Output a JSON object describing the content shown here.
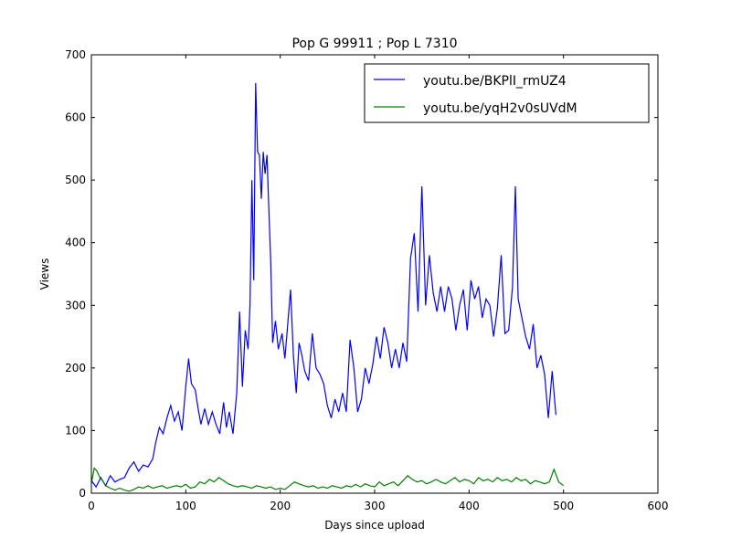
{
  "chart_data": {
    "type": "line",
    "title": "Pop G 99911 ; Pop L 7310",
    "xlabel": "Days since upload",
    "ylabel": "Views",
    "xlim": [
      0,
      600
    ],
    "ylim": [
      0,
      700
    ],
    "xticks": [
      0,
      100,
      200,
      300,
      400,
      500,
      600
    ],
    "yticks": [
      0,
      100,
      200,
      300,
      400,
      500,
      600,
      700
    ],
    "grid": false,
    "legend_position": "top-right",
    "series": [
      {
        "name": "youtu.be/BKPlI_rmUZ4",
        "color": "#0000ff",
        "points": [
          [
            0,
            20
          ],
          [
            5,
            10
          ],
          [
            10,
            25
          ],
          [
            15,
            12
          ],
          [
            20,
            28
          ],
          [
            25,
            18
          ],
          [
            30,
            22
          ],
          [
            35,
            25
          ],
          [
            40,
            40
          ],
          [
            45,
            50
          ],
          [
            50,
            35
          ],
          [
            55,
            45
          ],
          [
            60,
            42
          ],
          [
            65,
            55
          ],
          [
            68,
            80
          ],
          [
            72,
            105
          ],
          [
            76,
            95
          ],
          [
            80,
            120
          ],
          [
            84,
            140
          ],
          [
            88,
            115
          ],
          [
            92,
            130
          ],
          [
            96,
            100
          ],
          [
            100,
            170
          ],
          [
            103,
            215
          ],
          [
            106,
            175
          ],
          [
            110,
            165
          ],
          [
            113,
            135
          ],
          [
            116,
            110
          ],
          [
            120,
            135
          ],
          [
            124,
            110
          ],
          [
            128,
            130
          ],
          [
            132,
            110
          ],
          [
            136,
            95
          ],
          [
            140,
            145
          ],
          [
            143,
            105
          ],
          [
            146,
            130
          ],
          [
            150,
            95
          ],
          [
            154,
            160
          ],
          [
            157,
            290
          ],
          [
            160,
            170
          ],
          [
            163,
            260
          ],
          [
            166,
            230
          ],
          [
            168,
            300
          ],
          [
            170,
            500
          ],
          [
            172,
            340
          ],
          [
            174,
            655
          ],
          [
            176,
            545
          ],
          [
            178,
            540
          ],
          [
            180,
            470
          ],
          [
            182,
            545
          ],
          [
            184,
            510
          ],
          [
            186,
            540
          ],
          [
            188,
            450
          ],
          [
            190,
            370
          ],
          [
            192,
            240
          ],
          [
            195,
            275
          ],
          [
            198,
            230
          ],
          [
            202,
            255
          ],
          [
            205,
            215
          ],
          [
            208,
            270
          ],
          [
            211,
            325
          ],
          [
            214,
            220
          ],
          [
            217,
            160
          ],
          [
            220,
            240
          ],
          [
            223,
            220
          ],
          [
            226,
            195
          ],
          [
            230,
            180
          ],
          [
            234,
            255
          ],
          [
            238,
            200
          ],
          [
            242,
            190
          ],
          [
            246,
            175
          ],
          [
            250,
            140
          ],
          [
            254,
            120
          ],
          [
            258,
            150
          ],
          [
            262,
            130
          ],
          [
            266,
            160
          ],
          [
            270,
            130
          ],
          [
            274,
            245
          ],
          [
            278,
            200
          ],
          [
            282,
            130
          ],
          [
            286,
            150
          ],
          [
            290,
            200
          ],
          [
            294,
            175
          ],
          [
            298,
            205
          ],
          [
            302,
            250
          ],
          [
            306,
            215
          ],
          [
            310,
            265
          ],
          [
            314,
            240
          ],
          [
            318,
            200
          ],
          [
            322,
            230
          ],
          [
            326,
            200
          ],
          [
            330,
            240
          ],
          [
            334,
            210
          ],
          [
            338,
            375
          ],
          [
            342,
            415
          ],
          [
            346,
            290
          ],
          [
            350,
            490
          ],
          [
            354,
            300
          ],
          [
            358,
            380
          ],
          [
            362,
            320
          ],
          [
            366,
            290
          ],
          [
            370,
            330
          ],
          [
            374,
            290
          ],
          [
            378,
            330
          ],
          [
            382,
            310
          ],
          [
            386,
            260
          ],
          [
            390,
            300
          ],
          [
            394,
            325
          ],
          [
            398,
            260
          ],
          [
            402,
            340
          ],
          [
            406,
            310
          ],
          [
            410,
            330
          ],
          [
            414,
            280
          ],
          [
            418,
            310
          ],
          [
            422,
            300
          ],
          [
            426,
            250
          ],
          [
            430,
            295
          ],
          [
            434,
            380
          ],
          [
            438,
            255
          ],
          [
            442,
            260
          ],
          [
            446,
            330
          ],
          [
            449,
            490
          ],
          [
            452,
            310
          ],
          [
            456,
            280
          ],
          [
            460,
            250
          ],
          [
            464,
            230
          ],
          [
            468,
            270
          ],
          [
            472,
            200
          ],
          [
            476,
            220
          ],
          [
            480,
            190
          ],
          [
            484,
            120
          ],
          [
            488,
            195
          ],
          [
            492,
            125
          ]
        ]
      },
      {
        "name": "youtu.be/yqH2v0sUVdM",
        "color": "#008000",
        "points": [
          [
            0,
            15
          ],
          [
            3,
            40
          ],
          [
            6,
            35
          ],
          [
            9,
            25
          ],
          [
            12,
            20
          ],
          [
            15,
            12
          ],
          [
            20,
            8
          ],
          [
            25,
            5
          ],
          [
            30,
            8
          ],
          [
            35,
            5
          ],
          [
            40,
            3
          ],
          [
            45,
            6
          ],
          [
            50,
            10
          ],
          [
            55,
            8
          ],
          [
            60,
            12
          ],
          [
            65,
            8
          ],
          [
            70,
            10
          ],
          [
            75,
            12
          ],
          [
            80,
            8
          ],
          [
            85,
            10
          ],
          [
            90,
            12
          ],
          [
            95,
            10
          ],
          [
            100,
            14
          ],
          [
            105,
            8
          ],
          [
            110,
            10
          ],
          [
            115,
            18
          ],
          [
            120,
            15
          ],
          [
            125,
            22
          ],
          [
            130,
            18
          ],
          [
            135,
            25
          ],
          [
            140,
            20
          ],
          [
            145,
            15
          ],
          [
            150,
            12
          ],
          [
            155,
            10
          ],
          [
            160,
            12
          ],
          [
            165,
            10
          ],
          [
            170,
            8
          ],
          [
            175,
            12
          ],
          [
            180,
            10
          ],
          [
            185,
            8
          ],
          [
            190,
            10
          ],
          [
            195,
            6
          ],
          [
            200,
            8
          ],
          [
            205,
            6
          ],
          [
            210,
            12
          ],
          [
            215,
            18
          ],
          [
            220,
            15
          ],
          [
            225,
            12
          ],
          [
            230,
            10
          ],
          [
            235,
            12
          ],
          [
            240,
            8
          ],
          [
            245,
            10
          ],
          [
            250,
            8
          ],
          [
            255,
            12
          ],
          [
            260,
            10
          ],
          [
            265,
            8
          ],
          [
            270,
            12
          ],
          [
            275,
            10
          ],
          [
            280,
            14
          ],
          [
            285,
            10
          ],
          [
            290,
            15
          ],
          [
            295,
            12
          ],
          [
            300,
            10
          ],
          [
            305,
            18
          ],
          [
            310,
            12
          ],
          [
            315,
            15
          ],
          [
            320,
            18
          ],
          [
            325,
            12
          ],
          [
            330,
            20
          ],
          [
            335,
            28
          ],
          [
            340,
            22
          ],
          [
            345,
            18
          ],
          [
            350,
            20
          ],
          [
            355,
            15
          ],
          [
            360,
            18
          ],
          [
            365,
            22
          ],
          [
            370,
            18
          ],
          [
            375,
            15
          ],
          [
            380,
            20
          ],
          [
            385,
            25
          ],
          [
            390,
            18
          ],
          [
            395,
            22
          ],
          [
            400,
            20
          ],
          [
            405,
            15
          ],
          [
            410,
            25
          ],
          [
            415,
            20
          ],
          [
            420,
            22
          ],
          [
            425,
            18
          ],
          [
            430,
            25
          ],
          [
            435,
            20
          ],
          [
            440,
            22
          ],
          [
            445,
            18
          ],
          [
            450,
            25
          ],
          [
            455,
            20
          ],
          [
            460,
            22
          ],
          [
            465,
            15
          ],
          [
            470,
            20
          ],
          [
            475,
            18
          ],
          [
            480,
            15
          ],
          [
            485,
            18
          ],
          [
            490,
            38
          ],
          [
            495,
            18
          ],
          [
            500,
            12
          ]
        ]
      }
    ]
  }
}
